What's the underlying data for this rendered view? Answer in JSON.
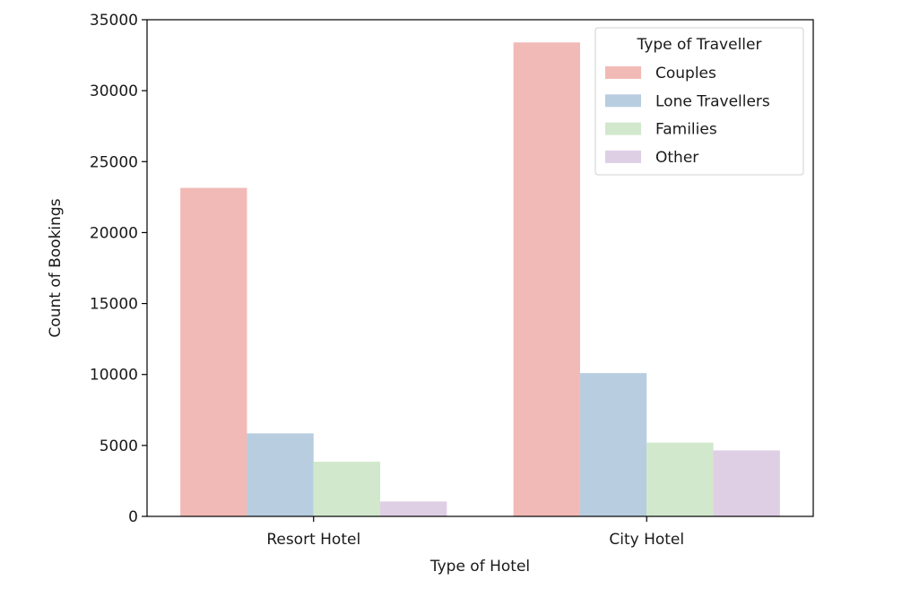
{
  "chart_data": {
    "type": "bar",
    "title": "",
    "xlabel": "Type of Hotel",
    "ylabel": "Count of Bookings",
    "categories": [
      "Resort Hotel",
      "City Hotel"
    ],
    "series": [
      {
        "name": "Couples",
        "color": "#f1bab6",
        "values": [
          23150,
          33400
        ]
      },
      {
        "name": "Lone Travellers",
        "color": "#b8cde0",
        "values": [
          5850,
          10100
        ]
      },
      {
        "name": "Families",
        "color": "#d1e8cc",
        "values": [
          3850,
          5200
        ]
      },
      {
        "name": "Other",
        "color": "#dfcfe5",
        "values": [
          1050,
          4650
        ]
      }
    ],
    "ylim": [
      0,
      35000
    ],
    "yticks": [
      0,
      5000,
      10000,
      15000,
      20000,
      25000,
      30000,
      35000
    ],
    "grid": false,
    "legend": {
      "title": "Type of Traveller",
      "position": "top-right"
    }
  }
}
